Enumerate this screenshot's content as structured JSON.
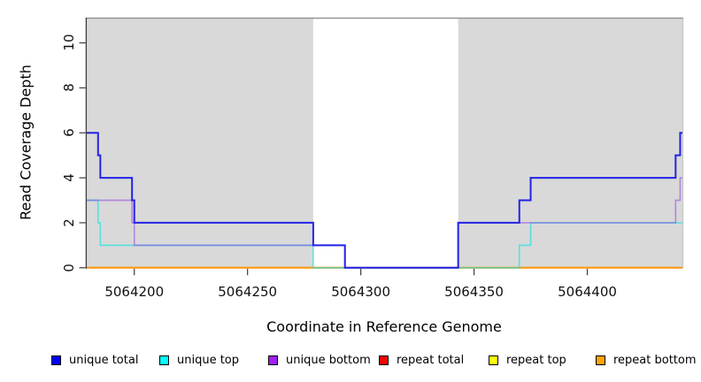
{
  "chart_data": {
    "type": "line",
    "subtype": "step-coverage-plot",
    "title": "",
    "xlabel": "Coordinate in Reference Genome",
    "ylabel": "Read Coverage Depth",
    "x_domain": [
      5064179,
      5064442
    ],
    "y_domain": [
      0,
      11.1
    ],
    "x_ticks": [
      5064200,
      5064250,
      5064300,
      5064350,
      5064400
    ],
    "y_ticks": [
      0,
      2,
      4,
      6,
      8,
      10
    ],
    "grid": "off",
    "step_style": "after",
    "panel": {
      "background": "#ffffff",
      "shaded_color": "#d9d9d9",
      "shaded_regions": [
        [
          5064179,
          5064279
        ],
        [
          5064343,
          5064442
        ]
      ],
      "top_border_color": "#8a8a8a",
      "right_border_color": "#bfbfbf",
      "axis_line_color": "#3c3c3c"
    },
    "series": [
      {
        "name": "repeat total",
        "line_color": "#e00000",
        "line_width": 1.4,
        "points": [
          [
            5064179,
            0
          ]
        ]
      },
      {
        "name": "repeat top",
        "line_color": "#f0f000",
        "line_width": 1.4,
        "points": [
          [
            5064179,
            0
          ]
        ]
      },
      {
        "name": "repeat bottom",
        "line_color": "#ff9408",
        "line_width": 2,
        "points": [
          [
            5064179,
            0
          ]
        ]
      },
      {
        "name": "unique top",
        "line_color": "rgba(18,226,226,0.62)",
        "line_width": 1.7,
        "points": [
          [
            5064179,
            3
          ],
          [
            5064184,
            2
          ],
          [
            5064185,
            1
          ],
          [
            5064279,
            0
          ],
          [
            5064370,
            1
          ],
          [
            5064375,
            2
          ]
        ]
      },
      {
        "name": "unique bottom",
        "line_color": "rgba(145,55,230,0.5)",
        "line_width": 1.7,
        "points": [
          [
            5064179,
            3
          ],
          [
            5064199,
            2
          ],
          [
            5064200,
            1
          ],
          [
            5064293,
            0
          ],
          [
            5064343,
            2
          ],
          [
            5064439,
            3
          ],
          [
            5064441,
            4
          ]
        ]
      },
      {
        "name": "unique total",
        "line_color": "#2323e6",
        "line_width": 2,
        "points": [
          [
            5064179,
            6
          ],
          [
            5064184,
            5
          ],
          [
            5064185,
            4
          ],
          [
            5064199,
            3
          ],
          [
            5064200,
            2
          ],
          [
            5064279,
            1
          ],
          [
            5064293,
            0
          ],
          [
            5064343,
            2
          ],
          [
            5064370,
            3
          ],
          [
            5064375,
            4
          ],
          [
            5064439,
            5
          ],
          [
            5064441,
            6
          ]
        ]
      }
    ],
    "legend": {
      "position": "bottom",
      "items": [
        {
          "label": "unique total",
          "color": "#0000ff"
        },
        {
          "label": "unique top",
          "color": "#00ffff"
        },
        {
          "label": "unique bottom",
          "color": "#a020f0"
        },
        {
          "label": "repeat total",
          "color": "#ff0000"
        },
        {
          "label": "repeat top",
          "color": "#ffff00"
        },
        {
          "label": "repeat bottom",
          "color": "#ffa500"
        }
      ]
    }
  }
}
